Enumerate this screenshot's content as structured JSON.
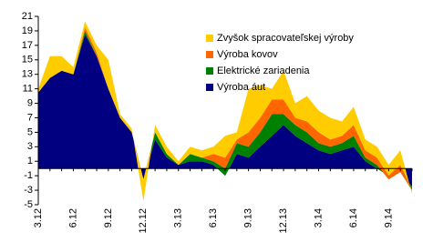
{
  "chart_data": {
    "type": "stacked_area",
    "categories": [
      "3.12",
      null,
      null,
      "6.12",
      null,
      null,
      "9.12",
      null,
      null,
      "12.12",
      null,
      null,
      "3.13",
      null,
      null,
      "6.13",
      null,
      null,
      "9.13",
      null,
      null,
      "12.13",
      null,
      null,
      "3.14",
      null,
      null,
      "6.14",
      null,
      null,
      "9.14",
      null,
      null
    ],
    "series": [
      {
        "name": "Výroba áut",
        "color": "#000080",
        "values": [
          10.5,
          12.5,
          13.5,
          13,
          18.5,
          15.5,
          11,
          7,
          5,
          -1.5,
          4,
          1.5,
          0.5,
          1,
          1,
          0.5,
          -1,
          2,
          1.5,
          3,
          4.5,
          6,
          4.5,
          3.5,
          2.5,
          2,
          2.5,
          3,
          1,
          0,
          -1,
          -0.5,
          -2.5
        ]
      },
      {
        "name": "Elektrické zariadenia",
        "color": "#008000",
        "values": [
          0,
          0,
          0,
          0,
          0.5,
          0,
          0,
          0,
          0,
          0,
          1,
          0.5,
          0,
          1,
          0.5,
          0.5,
          1,
          1.5,
          1.5,
          2,
          3,
          1.5,
          1.5,
          1.5,
          1,
          1,
          1,
          1.5,
          0.5,
          0.5,
          -0.5,
          0,
          -0.5
        ]
      },
      {
        "name": "Výroba kovov",
        "color": "#ff6600",
        "values": [
          0,
          0,
          0,
          0,
          0.5,
          0.5,
          0,
          0,
          0,
          0,
          0,
          0,
          0,
          0,
          0,
          1,
          1.5,
          0.5,
          2,
          2,
          2,
          2,
          1,
          1.5,
          1.5,
          1,
          1,
          1.5,
          1,
          1,
          0.5,
          1,
          0
        ]
      },
      {
        "name": "Zvyšok spracovateľskej výroby",
        "color": "#ffcc00",
        "values": [
          0.5,
          3,
          2,
          1,
          0.8,
          1,
          4,
          0.5,
          0.5,
          -3,
          1,
          1,
          0.5,
          1,
          1,
          1,
          3,
          1,
          6,
          4.5,
          1.5,
          4,
          2,
          3.5,
          3,
          3,
          2,
          2.5,
          1.5,
          1.5,
          1.5,
          2,
          -0.5
        ]
      }
    ],
    "ylim": [
      -5,
      21
    ],
    "yticks": [
      -5,
      -3,
      -1,
      1,
      3,
      5,
      7,
      9,
      11,
      13,
      15,
      17,
      19,
      21
    ],
    "legend": "upper right"
  }
}
